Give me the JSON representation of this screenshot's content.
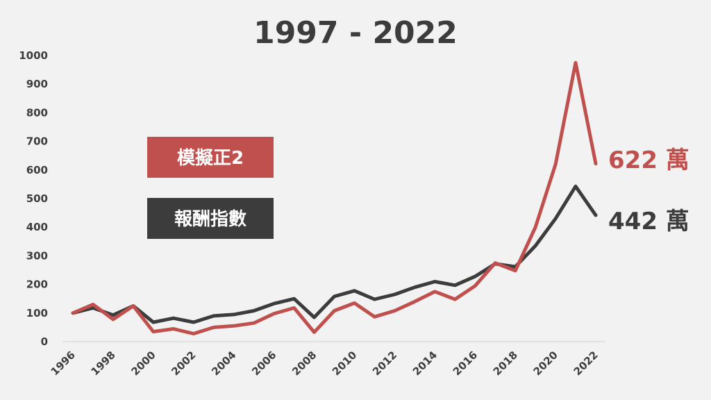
{
  "chart_data": {
    "type": "line",
    "title": "1997 - 2022",
    "xlabel": "",
    "ylabel": "",
    "ylim": [
      0,
      1000
    ],
    "xlim": [
      1996,
      2022
    ],
    "yticks": [
      0,
      100,
      200,
      300,
      400,
      500,
      600,
      700,
      800,
      900,
      1000
    ],
    "ytick_labels": [
      "0",
      "100",
      "200",
      "300",
      "400",
      "500",
      "600",
      "700",
      "800",
      "900",
      "1000"
    ],
    "xticks": [
      1996,
      1998,
      2000,
      2002,
      2004,
      2006,
      2008,
      2010,
      2012,
      2014,
      2016,
      2018,
      2020,
      2022
    ],
    "xtick_labels": [
      "1996",
      "1998",
      "2000",
      "2002",
      "2004",
      "2006",
      "2008",
      "2010",
      "2012",
      "2014",
      "2016",
      "2018",
      "2020",
      "2022"
    ],
    "grid": false,
    "legend_position": "left-middle",
    "x": [
      1996,
      1997,
      1998,
      1999,
      2000,
      2001,
      2002,
      2003,
      2004,
      2005,
      2006,
      2007,
      2008,
      2009,
      2010,
      2011,
      2012,
      2013,
      2014,
      2015,
      2016,
      2017,
      2018,
      2019,
      2020,
      2021,
      2022
    ],
    "series": [
      {
        "name": "模擬正2",
        "color": "#c0504d",
        "values": [
          100,
          130,
          78,
          125,
          35,
          45,
          28,
          50,
          55,
          65,
          98,
          118,
          33,
          108,
          135,
          87,
          108,
          140,
          175,
          148,
          195,
          275,
          248,
          400,
          620,
          975,
          622
        ],
        "end_label": "622 萬"
      },
      {
        "name": "報酬指數",
        "color": "#3c3c3c",
        "values": [
          100,
          118,
          93,
          125,
          68,
          82,
          68,
          90,
          95,
          108,
          133,
          150,
          85,
          158,
          178,
          148,
          165,
          190,
          210,
          197,
          228,
          272,
          262,
          335,
          430,
          543,
          442
        ],
        "end_label": "442 萬"
      }
    ]
  }
}
